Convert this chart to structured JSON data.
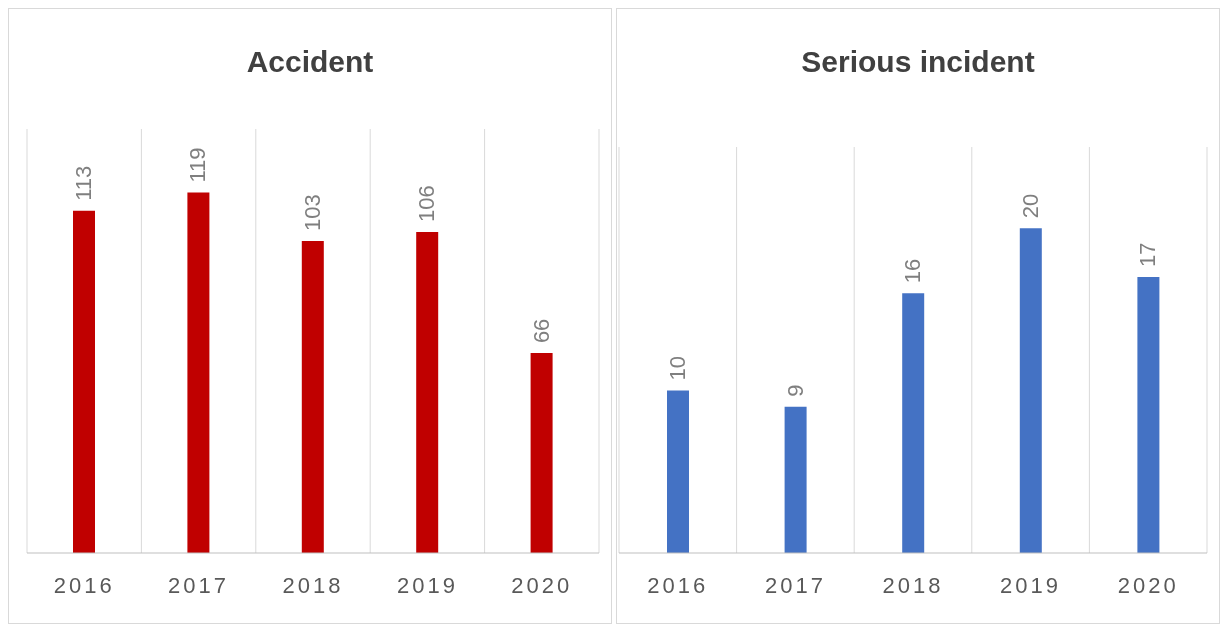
{
  "chart_data": [
    {
      "type": "bar",
      "title": "Accident",
      "categories": [
        "2016",
        "2017",
        "2018",
        "2019",
        "2020"
      ],
      "values": [
        113,
        119,
        103,
        106,
        66
      ],
      "color": "#c00000",
      "ylim": [
        0,
        140
      ],
      "data_labels": true,
      "grid": "x",
      "legend": false
    },
    {
      "type": "bar",
      "title": "Serious incident",
      "categories": [
        "2016",
        "2017",
        "2018",
        "2019",
        "2020"
      ],
      "values": [
        10,
        9,
        16,
        20,
        17
      ],
      "color": "#4472c4",
      "ylim": [
        0,
        25
      ],
      "data_labels": true,
      "grid": "x",
      "legend": false
    }
  ]
}
